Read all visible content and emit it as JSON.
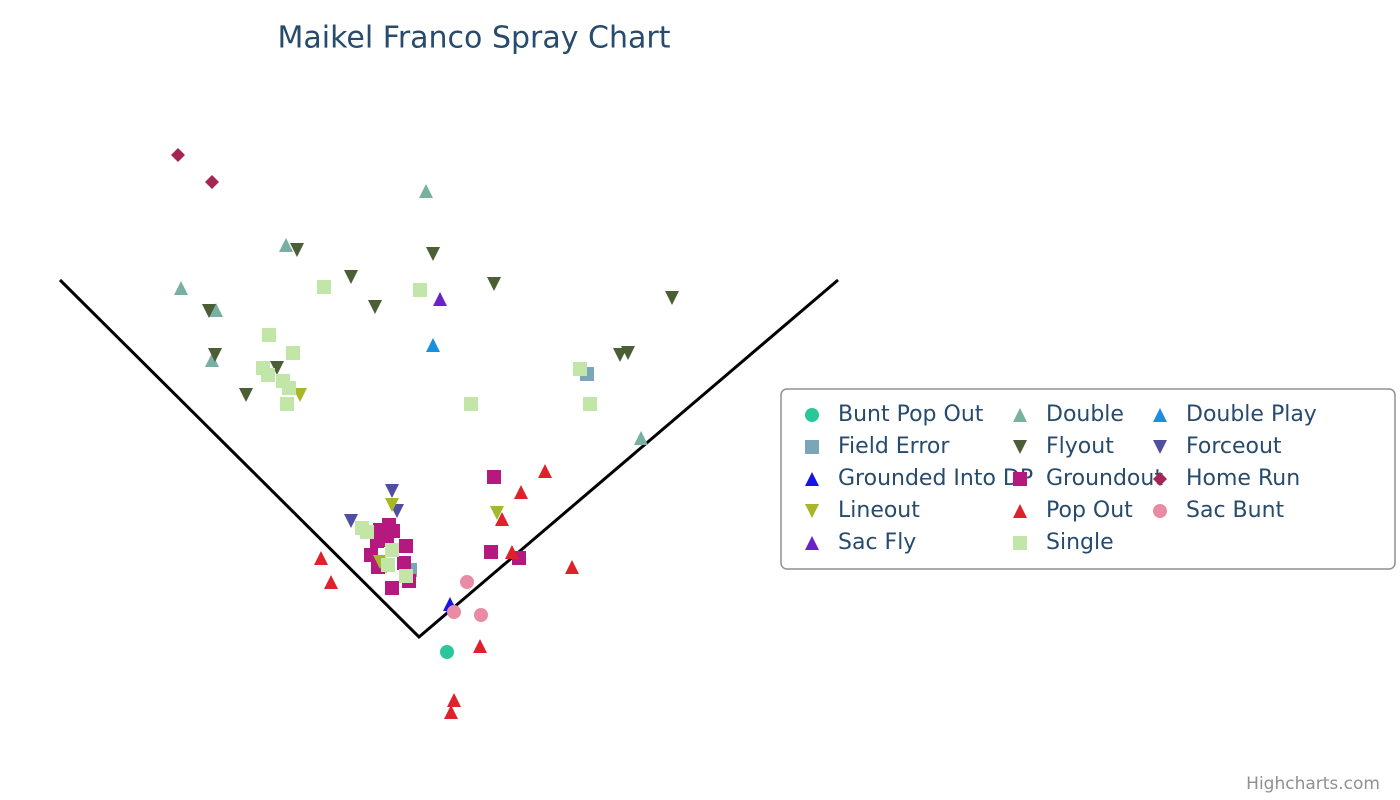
{
  "chart_data": {
    "type": "scatter",
    "title": "Maikel Franco Spray Chart",
    "credits": "Highcharts.com",
    "xlim": [
      -419,
      981
    ],
    "ylim": [
      -163,
      637
    ],
    "series": [
      {
        "name": "Bunt Pop Out",
        "color": "#2bc69a",
        "marker": "circle",
        "x": [
          28
        ],
        "values": [
          -15
        ]
      },
      {
        "name": "Double",
        "color": "#78b0a2",
        "marker": "triangle",
        "x": [
          7,
          -133,
          -238,
          -203,
          -207,
          222
        ],
        "values": [
          446,
          392,
          349,
          327,
          277,
          199
        ]
      },
      {
        "name": "Double Play",
        "color": "#1a8fe0",
        "marker": "triangle",
        "x": [
          14
        ],
        "values": [
          292
        ]
      },
      {
        "name": "Field Error",
        "color": "#7aa6b8",
        "marker": "square",
        "x": [
          168,
          -9
        ],
        "values": [
          263,
          67
        ]
      },
      {
        "name": "Flyout",
        "color": "#4b5e36",
        "marker": "triangle-down",
        "x": [
          -122,
          14,
          -68,
          75,
          253,
          -44,
          -210,
          209,
          201,
          -204,
          -142,
          -173
        ],
        "values": [
          387,
          383,
          360,
          353,
          339,
          330,
          326,
          284,
          282,
          282,
          269,
          242
        ]
      },
      {
        "name": "Forceout",
        "color": "#4f4ea0",
        "marker": "triangle-down",
        "x": [
          -27,
          -68,
          -22
        ],
        "values": [
          146,
          116,
          126
        ]
      },
      {
        "name": "Grounded Into DP",
        "color": "#1515e6",
        "marker": "triangle",
        "x": [
          31
        ],
        "values": [
          33
        ]
      },
      {
        "name": "Groundout",
        "color": "#b5197f",
        "marker": "square",
        "x": [
          75,
          -30,
          -39,
          -26,
          -42,
          -13,
          72,
          100,
          -48,
          -41,
          -15,
          -10,
          -27,
          -32
        ],
        "values": [
          160,
          112,
          107,
          106,
          96,
          91,
          85,
          79,
          82,
          70,
          74,
          56,
          49,
          97
        ]
      },
      {
        "name": "Home Run",
        "color": "#a52555",
        "marker": "diamond",
        "x": [
          -241,
          -207
        ],
        "values": [
          482,
          455
        ]
      },
      {
        "name": "Lineout",
        "color": "#a6b82a",
        "marker": "triangle-down",
        "x": [
          -119,
          -27,
          78,
          -39,
          -33
        ],
        "values": [
          242,
          132,
          124,
          75,
          70
        ]
      },
      {
        "name": "Pop Out",
        "color": "#e0202a",
        "marker": "triangle",
        "x": [
          126,
          102,
          83,
          93,
          -98,
          153,
          -88,
          61,
          35,
          32
        ],
        "values": [
          166,
          145,
          118,
          85,
          79,
          70,
          55,
          -9,
          -63,
          -75
        ]
      },
      {
        "name": "Sac Bunt",
        "color": "#ea8ba5",
        "marker": "circle",
        "x": [
          48,
          35,
          62
        ],
        "values": [
          55,
          25,
          22
        ]
      },
      {
        "name": "Sac Fly",
        "color": "#6a23c8",
        "marker": "triangle",
        "x": [
          21
        ],
        "values": [
          338
        ]
      },
      {
        "name": "Single",
        "color": "#c2e5a8",
        "marker": "square",
        "x": [
          -95,
          1,
          -150,
          -126,
          161,
          -156,
          -151,
          -136,
          -130,
          52,
          171,
          -132,
          -57,
          -52,
          -27,
          -31,
          -13
        ],
        "values": [
          350,
          347,
          302,
          284,
          268,
          269,
          262,
          256,
          249,
          233,
          233,
          233,
          109,
          105,
          87,
          72,
          61
        ]
      }
    ]
  }
}
